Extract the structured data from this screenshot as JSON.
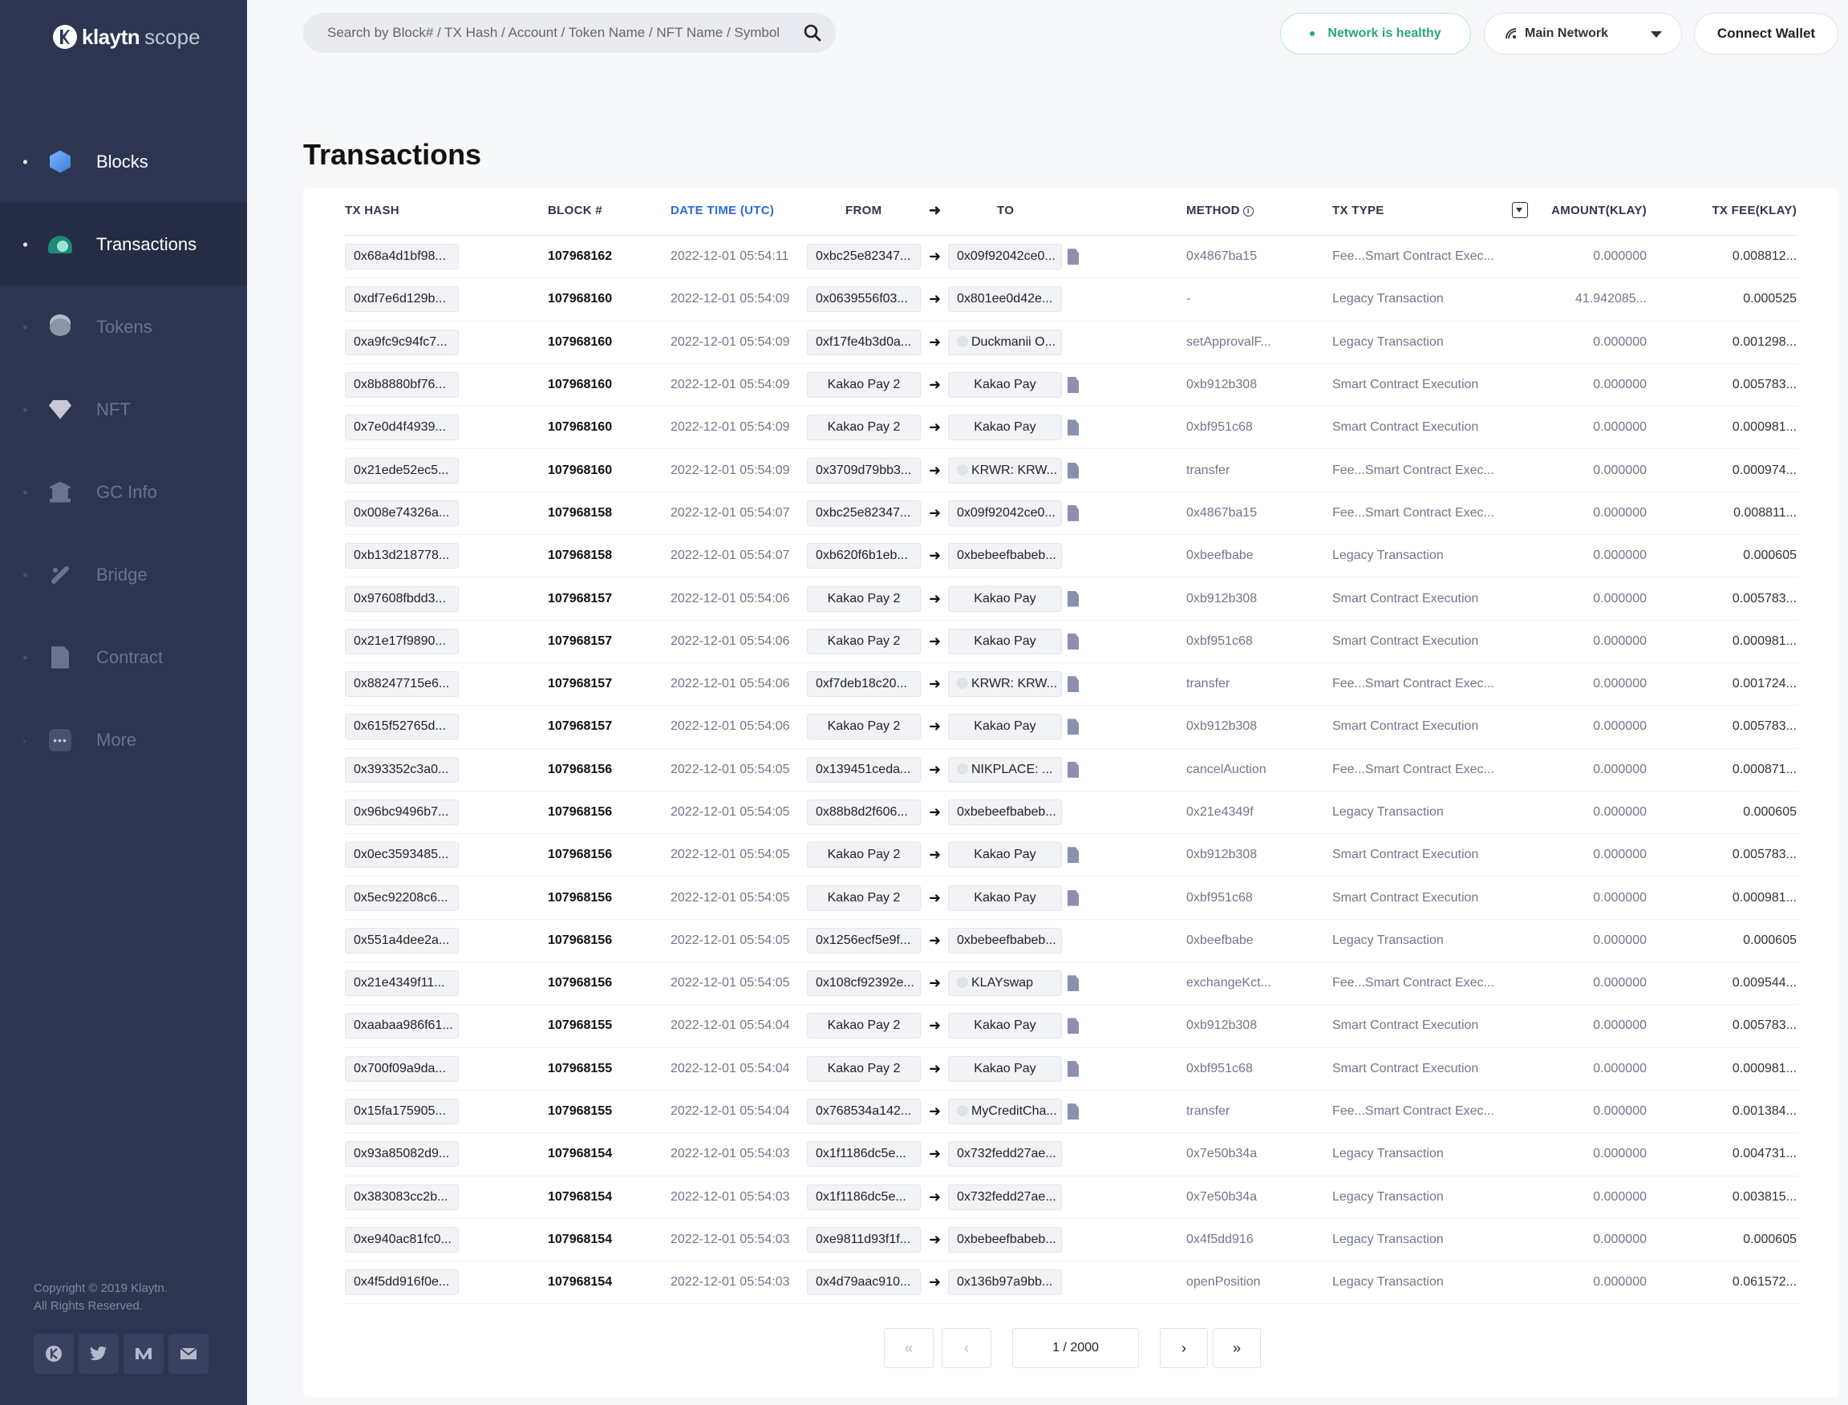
{
  "app": {
    "logo_text": "klaytn",
    "logo_sub": "scope"
  },
  "sidebar": {
    "items": [
      {
        "label": "Blocks",
        "icon": "cube-icon"
      },
      {
        "label": "Transactions",
        "icon": "transactions-icon"
      },
      {
        "label": "Tokens",
        "icon": "coins-icon"
      },
      {
        "label": "NFT",
        "icon": "diamond-icon"
      },
      {
        "label": "GC Info",
        "icon": "bank-icon"
      },
      {
        "label": "Bridge",
        "icon": "bridge-icon"
      },
      {
        "label": "Contract",
        "icon": "document-icon"
      },
      {
        "label": "More",
        "icon": "more-icon"
      }
    ],
    "copyright_line1": "Copyright © 2019 Klaytn.",
    "copyright_line2": "All Rights Reserved."
  },
  "header": {
    "search_placeholder": "Search by Block# / TX Hash / Account / Token Name / NFT Name / Symbol",
    "health_label": "Network is healthy",
    "network_label": "Main Network",
    "wallet_label": "Connect Wallet"
  },
  "page": {
    "title": "Transactions"
  },
  "table": {
    "headers": {
      "hash": "TX HASH",
      "block": "BLOCK #",
      "date": "DATE TIME (UTC)",
      "from": "FROM",
      "arrow": "➜",
      "to": "TO",
      "method": "METHOD",
      "type": "TX TYPE",
      "amount": "AMOUNT(KLAY)",
      "fee": "TX FEE(KLAY)"
    },
    "rows": [
      {
        "hash": "0x68a4d1bf98...",
        "block": "107968162",
        "date": "2022-12-01 05:54:11",
        "from": "0xbc25e82347...",
        "to": "0x09f92042ce0...",
        "to_token": false,
        "doc": true,
        "method": "0x4867ba15",
        "type": "Fee...Smart Contract Exec...",
        "amount": "0.000000",
        "fee": "0.008812..."
      },
      {
        "hash": "0xdf7e6d129b...",
        "block": "107968160",
        "date": "2022-12-01 05:54:09",
        "from": "0x0639556f03...",
        "to": "0x801ee0d42e...",
        "to_token": false,
        "doc": false,
        "method": "-",
        "type": "Legacy Transaction",
        "amount": "41.942085...",
        "fee": "0.000525"
      },
      {
        "hash": "0xa9fc9c94fc7...",
        "block": "107968160",
        "date": "2022-12-01 05:54:09",
        "from": "0xf17fe4b3d0a...",
        "to": "Duckmanii O...",
        "to_token": true,
        "doc": false,
        "method": "setApprovalF...",
        "type": "Legacy Transaction",
        "amount": "0.000000",
        "fee": "0.001298..."
      },
      {
        "hash": "0x8b8880bf76...",
        "block": "107968160",
        "date": "2022-12-01 05:54:09",
        "from": "Kakao Pay 2",
        "to": "Kakao Pay",
        "to_token": false,
        "doc": true,
        "method": "0xb912b308",
        "type": "Smart Contract Execution",
        "amount": "0.000000",
        "fee": "0.005783..."
      },
      {
        "hash": "0x7e0d4f4939...",
        "block": "107968160",
        "date": "2022-12-01 05:54:09",
        "from": "Kakao Pay 2",
        "to": "Kakao Pay",
        "to_token": false,
        "doc": true,
        "method": "0xbf951c68",
        "type": "Smart Contract Execution",
        "amount": "0.000000",
        "fee": "0.000981..."
      },
      {
        "hash": "0x21ede52ec5...",
        "block": "107968160",
        "date": "2022-12-01 05:54:09",
        "from": "0x3709d79bb3...",
        "to": "KRWR: KRW...",
        "to_token": true,
        "doc": true,
        "method": "transfer",
        "type": "Fee...Smart Contract Exec...",
        "amount": "0.000000",
        "fee": "0.000974..."
      },
      {
        "hash": "0x008e74326a...",
        "block": "107968158",
        "date": "2022-12-01 05:54:07",
        "from": "0xbc25e82347...",
        "to": "0x09f92042ce0...",
        "to_token": false,
        "doc": true,
        "method": "0x4867ba15",
        "type": "Fee...Smart Contract Exec...",
        "amount": "0.000000",
        "fee": "0.008811..."
      },
      {
        "hash": "0xb13d218778...",
        "block": "107968158",
        "date": "2022-12-01 05:54:07",
        "from": "0xb620f6b1eb...",
        "to": "0xbebeefbabeb...",
        "to_token": false,
        "doc": false,
        "method": "0xbeefbabe",
        "type": "Legacy Transaction",
        "amount": "0.000000",
        "fee": "0.000605"
      },
      {
        "hash": "0x97608fbdd3...",
        "block": "107968157",
        "date": "2022-12-01 05:54:06",
        "from": "Kakao Pay 2",
        "to": "Kakao Pay",
        "to_token": false,
        "doc": true,
        "method": "0xb912b308",
        "type": "Smart Contract Execution",
        "amount": "0.000000",
        "fee": "0.005783..."
      },
      {
        "hash": "0x21e17f9890...",
        "block": "107968157",
        "date": "2022-12-01 05:54:06",
        "from": "Kakao Pay 2",
        "to": "Kakao Pay",
        "to_token": false,
        "doc": true,
        "method": "0xbf951c68",
        "type": "Smart Contract Execution",
        "amount": "0.000000",
        "fee": "0.000981..."
      },
      {
        "hash": "0x88247715e6...",
        "block": "107968157",
        "date": "2022-12-01 05:54:06",
        "from": "0xf7deb18c20...",
        "to": "KRWR: KRW...",
        "to_token": true,
        "doc": true,
        "method": "transfer",
        "type": "Fee...Smart Contract Exec...",
        "amount": "0.000000",
        "fee": "0.001724..."
      },
      {
        "hash": "0x615f52765d...",
        "block": "107968157",
        "date": "2022-12-01 05:54:06",
        "from": "Kakao Pay 2",
        "to": "Kakao Pay",
        "to_token": false,
        "doc": true,
        "method": "0xb912b308",
        "type": "Smart Contract Execution",
        "amount": "0.000000",
        "fee": "0.005783..."
      },
      {
        "hash": "0x393352c3a0...",
        "block": "107968156",
        "date": "2022-12-01 05:54:05",
        "from": "0x139451ceda...",
        "to": "NIKPLACE: ...",
        "to_token": true,
        "doc": true,
        "method": "cancelAuction",
        "type": "Fee...Smart Contract Exec...",
        "amount": "0.000000",
        "fee": "0.000871...",
        "flag": true
      },
      {
        "hash": "0x96bc9496b7...",
        "block": "107968156",
        "date": "2022-12-01 05:54:05",
        "from": "0x88b8d2f606...",
        "to": "0xbebeefbabeb...",
        "to_token": false,
        "doc": false,
        "method": "0x21e4349f",
        "type": "Legacy Transaction",
        "amount": "0.000000",
        "fee": "0.000605"
      },
      {
        "hash": "0x0ec3593485...",
        "block": "107968156",
        "date": "2022-12-01 05:54:05",
        "from": "Kakao Pay 2",
        "to": "Kakao Pay",
        "to_token": false,
        "doc": true,
        "method": "0xb912b308",
        "type": "Smart Contract Execution",
        "amount": "0.000000",
        "fee": "0.005783..."
      },
      {
        "hash": "0x5ec92208c6...",
        "block": "107968156",
        "date": "2022-12-01 05:54:05",
        "from": "Kakao Pay 2",
        "to": "Kakao Pay",
        "to_token": false,
        "doc": true,
        "method": "0xbf951c68",
        "type": "Smart Contract Execution",
        "amount": "0.000000",
        "fee": "0.000981..."
      },
      {
        "hash": "0x551a4dee2a...",
        "block": "107968156",
        "date": "2022-12-01 05:54:05",
        "from": "0x1256ecf5e9f...",
        "to": "0xbebeefbabeb...",
        "to_token": false,
        "doc": false,
        "method": "0xbeefbabe",
        "type": "Legacy Transaction",
        "amount": "0.000000",
        "fee": "0.000605"
      },
      {
        "hash": "0x21e4349f11...",
        "block": "107968156",
        "date": "2022-12-01 05:54:05",
        "from": "0x108cf92392e...",
        "to": "KLAYswap",
        "to_token": true,
        "doc": true,
        "method": "exchangeKct...",
        "type": "Fee...Smart Contract Exec...",
        "amount": "0.000000",
        "fee": "0.009544..."
      },
      {
        "hash": "0xaabaa986f61...",
        "block": "107968155",
        "date": "2022-12-01 05:54:04",
        "from": "Kakao Pay 2",
        "to": "Kakao Pay",
        "to_token": false,
        "doc": true,
        "method": "0xb912b308",
        "type": "Smart Contract Execution",
        "amount": "0.000000",
        "fee": "0.005783..."
      },
      {
        "hash": "0x700f09a9da...",
        "block": "107968155",
        "date": "2022-12-01 05:54:04",
        "from": "Kakao Pay 2",
        "to": "Kakao Pay",
        "to_token": false,
        "doc": true,
        "method": "0xbf951c68",
        "type": "Smart Contract Execution",
        "amount": "0.000000",
        "fee": "0.000981..."
      },
      {
        "hash": "0x15fa175905...",
        "block": "107968155",
        "date": "2022-12-01 05:54:04",
        "from": "0x768534a142...",
        "to": "MyCreditCha...",
        "to_token": true,
        "doc": true,
        "method": "transfer",
        "type": "Fee...Smart Contract Exec...",
        "amount": "0.000000",
        "fee": "0.001384..."
      },
      {
        "hash": "0x93a85082d9...",
        "block": "107968154",
        "date": "2022-12-01 05:54:03",
        "from": "0x1f1186dc5e...",
        "to": "0x732fedd27ae...",
        "to_token": false,
        "doc": false,
        "method": "0x7e50b34a",
        "type": "Legacy Transaction",
        "amount": "0.000000",
        "fee": "0.004731..."
      },
      {
        "hash": "0x383083cc2b...",
        "block": "107968154",
        "date": "2022-12-01 05:54:03",
        "from": "0x1f1186dc5e...",
        "to": "0x732fedd27ae...",
        "to_token": false,
        "doc": false,
        "method": "0x7e50b34a",
        "type": "Legacy Transaction",
        "amount": "0.000000",
        "fee": "0.003815..."
      },
      {
        "hash": "0xe940ac81fc0...",
        "block": "107968154",
        "date": "2022-12-01 05:54:03",
        "from": "0xe9811d93f1f...",
        "to": "0xbebeefbabeb...",
        "to_token": false,
        "doc": false,
        "method": "0x4f5dd916",
        "type": "Legacy Transaction",
        "amount": "0.000000",
        "fee": "0.000605"
      },
      {
        "hash": "0x4f5dd916f0e...",
        "block": "107968154",
        "date": "2022-12-01 05:54:03",
        "from": "0x4d79aac910...",
        "to": "0x136b97a9bb...",
        "to_token": false,
        "doc": false,
        "method": "openPosition",
        "type": "Legacy Transaction",
        "amount": "0.000000",
        "fee": "0.061572..."
      }
    ]
  },
  "pagination": {
    "first": "«",
    "prev": "‹",
    "page": "1 / 2000",
    "next": "›",
    "last": "»"
  }
}
